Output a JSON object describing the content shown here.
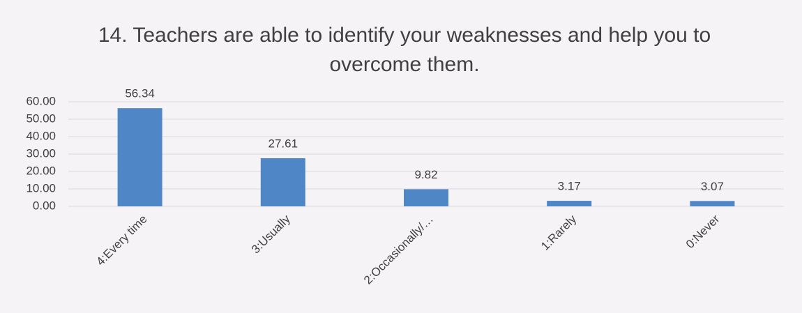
{
  "chart_data": {
    "type": "bar",
    "title": "14. Teachers are able to identify your weaknesses and help you to overcome them.",
    "categories": [
      "4:Every time",
      "3:Usually",
      "2:Occasionally/…",
      "1:Rarely",
      "0:Never"
    ],
    "values": [
      56.34,
      27.61,
      9.82,
      3.17,
      3.07
    ],
    "color": "#4f86c6",
    "ylim": [
      0,
      60
    ],
    "yticks": [
      {
        "value": 0,
        "label": "0.00"
      },
      {
        "value": 10,
        "label": "10.00"
      },
      {
        "value": 20,
        "label": "20.00"
      },
      {
        "value": 30,
        "label": "30.00"
      },
      {
        "value": 40,
        "label": "40.00"
      },
      {
        "value": 50,
        "label": "50.00"
      },
      {
        "value": 60,
        "label": "60.00"
      }
    ],
    "grid": true
  }
}
